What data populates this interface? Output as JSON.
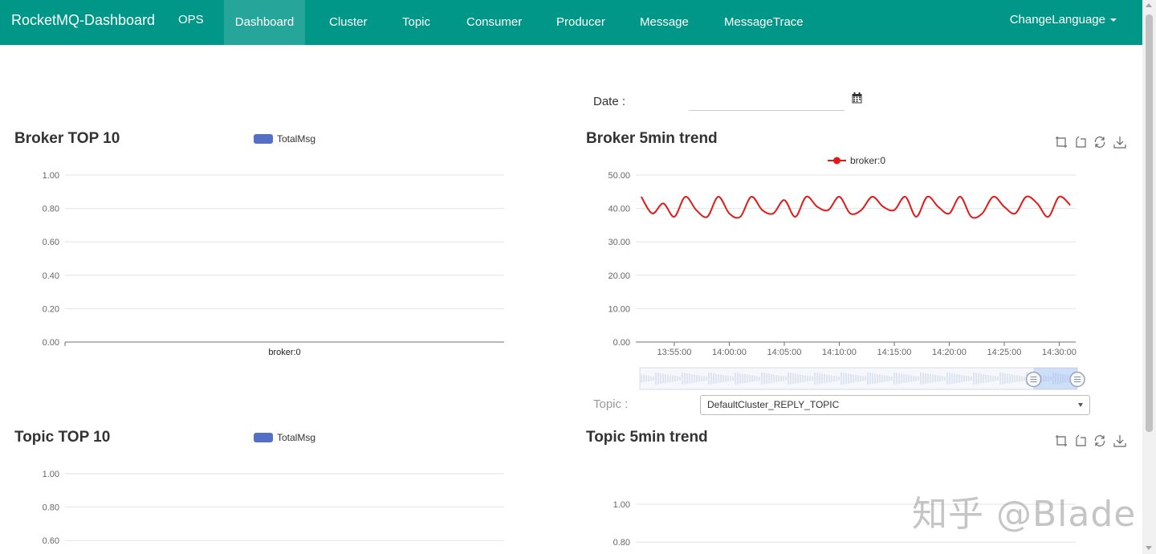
{
  "navbar": {
    "brand": "RocketMQ-Dashboard",
    "items": [
      {
        "label": "OPS"
      },
      {
        "label": "Dashboard"
      },
      {
        "label": "Cluster"
      },
      {
        "label": "Topic"
      },
      {
        "label": "Consumer"
      },
      {
        "label": "Producer"
      },
      {
        "label": "Message"
      },
      {
        "label": "MessageTrace"
      }
    ],
    "language": "ChangeLanguage",
    "active_item": "Dashboard"
  },
  "date_filter": {
    "label": "Date :",
    "value": "",
    "icon": "calendar-icon"
  },
  "broker_top10": {
    "title": "Broker TOP 10",
    "legend": "TotalMsg"
  },
  "broker_trend": {
    "title": "Broker 5min trend",
    "legend": "broker:0",
    "toolbox": [
      "zoom-icon",
      "zoom-reset-icon",
      "restore-icon",
      "download-icon"
    ]
  },
  "topic_filter": {
    "label": "Topic :",
    "selected": "DefaultCluster_REPLY_TOPIC"
  },
  "topic_top10": {
    "title": "Topic TOP 10",
    "legend": "TotalMsg"
  },
  "topic_trend": {
    "title": "Topic 5min trend",
    "toolbox": [
      "zoom-icon",
      "zoom-reset-icon",
      "restore-icon",
      "download-icon"
    ]
  },
  "watermark": "知乎 @Blade",
  "colors": {
    "navbar": "#009688",
    "navbar_active": "#26a69a",
    "bar_series": "#5470c6",
    "line_series": "#e01b1b"
  },
  "chart_data": [
    {
      "type": "bar",
      "title": "Broker TOP 10",
      "categories": [
        "broker:0"
      ],
      "series": [
        {
          "name": "TotalMsg",
          "values": [
            0
          ]
        }
      ],
      "yticks": [
        "0.00",
        "0.20",
        "0.40",
        "0.60",
        "0.80",
        "1.00"
      ],
      "ylim": [
        0,
        1
      ],
      "legend": "top",
      "grid": true
    },
    {
      "type": "line",
      "title": "Broker 5min trend",
      "x": [
        "13:52:00",
        "13:53:00",
        "13:54:00",
        "13:55:00",
        "13:56:00",
        "13:57:00",
        "13:58:00",
        "13:59:00",
        "14:00:00",
        "14:01:00",
        "14:02:00",
        "14:03:00",
        "14:04:00",
        "14:05:00",
        "14:06:00",
        "14:07:00",
        "14:08:00",
        "14:09:00",
        "14:10:00",
        "14:11:00",
        "14:12:00",
        "14:13:00",
        "14:14:00",
        "14:15:00",
        "14:16:00",
        "14:17:00",
        "14:18:00",
        "14:19:00",
        "14:20:00",
        "14:21:00",
        "14:22:00",
        "14:23:00",
        "14:24:00",
        "14:25:00",
        "14:26:00",
        "14:27:00",
        "14:28:00",
        "14:29:00",
        "14:30:00",
        "14:31:00"
      ],
      "xticks": [
        "13:55:00",
        "14:00:00",
        "14:05:00",
        "14:10:00",
        "14:15:00",
        "14:20:00",
        "14:25:00",
        "14:30:00"
      ],
      "series": [
        {
          "name": "broker:0",
          "values": [
            43.5,
            38.5,
            41.5,
            37.5,
            43.5,
            39.5,
            37.5,
            43.5,
            38.5,
            37.5,
            43.5,
            39.5,
            38.5,
            42.5,
            37.5,
            43.5,
            40.5,
            39.5,
            43.5,
            38.5,
            39.5,
            43.5,
            40.5,
            39.5,
            43.5,
            37.5,
            43.5,
            40.5,
            38.5,
            43.5,
            37.5,
            38.5,
            43.5,
            40.5,
            38.5,
            43.5,
            41.5,
            37.5,
            43.5,
            41
          ]
        }
      ],
      "yticks": [
        "0.00",
        "10.00",
        "20.00",
        "30.00",
        "40.00",
        "50.00"
      ],
      "ylim": [
        0,
        50
      ],
      "legend": "top",
      "grid": true,
      "datazoom": {
        "start": 0.9,
        "end": 1.0
      }
    },
    {
      "type": "bar",
      "title": "Topic TOP 10",
      "categories": [],
      "series": [
        {
          "name": "TotalMsg",
          "values": []
        }
      ],
      "yticks": [
        "0.60",
        "0.80",
        "1.00"
      ],
      "ylim": [
        0,
        1
      ],
      "legend": "top",
      "grid": true
    },
    {
      "type": "line",
      "title": "Topic 5min trend",
      "series": [],
      "yticks": [
        "0.80",
        "1.00"
      ],
      "ylim": [
        0,
        1
      ],
      "grid": true
    }
  ]
}
